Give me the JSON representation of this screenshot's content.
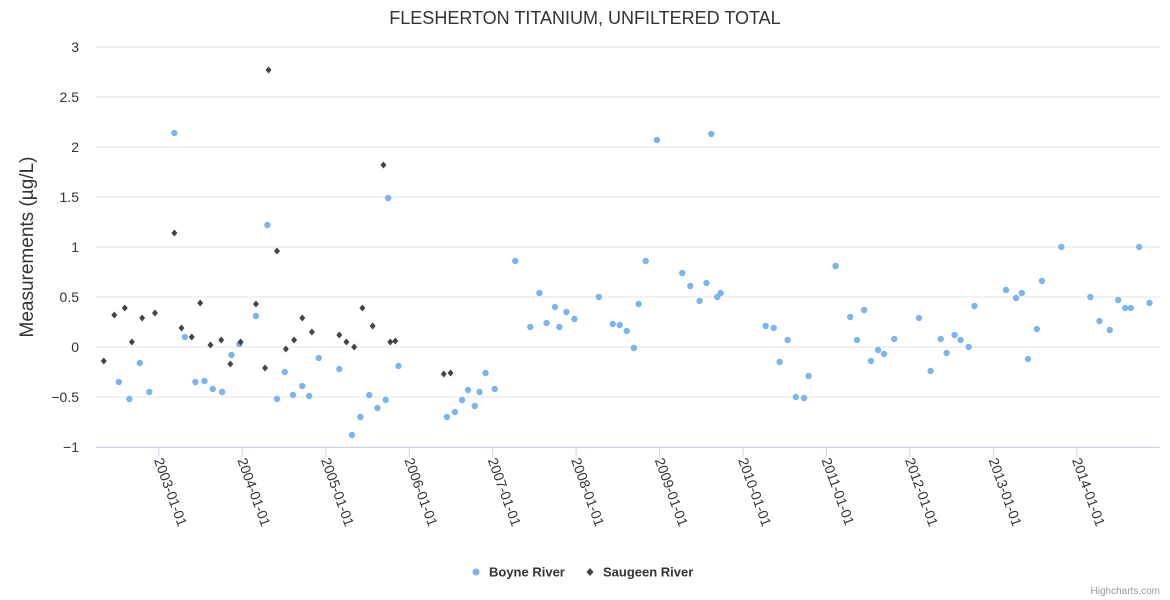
{
  "chart_data": {
    "type": "scatter",
    "title": "FLESHERTON TITANIUM, UNFILTERED TOTAL",
    "xlabel": "",
    "ylabel": "Measurements (µg/L)",
    "ylim": [
      -1,
      3
    ],
    "y_ticks": [
      "−1",
      "−0.5",
      "0",
      "0.5",
      "1",
      "1.5",
      "2",
      "2.5",
      "3"
    ],
    "x_ticks": [
      "2003-01-01",
      "2004-01-01",
      "2005-01-01",
      "2006-01-01",
      "2007-01-01",
      "2008-01-01",
      "2009-01-01",
      "2010-01-01",
      "2011-01-01",
      "2012-01-01",
      "2013-01-01",
      "2014-01-01"
    ],
    "x_domain": [
      "2002-04-01",
      "2014-12-31"
    ],
    "grid": true,
    "legend_placement": "bottom-center",
    "credits": "Highcharts.com",
    "series": [
      {
        "name": "Boyne River",
        "color": "#7cb5ec",
        "marker": "circle",
        "points": [
          [
            "2002-07-10",
            -0.35
          ],
          [
            "2002-08-25",
            -0.52
          ],
          [
            "2002-10-10",
            -0.16
          ],
          [
            "2002-11-20",
            -0.45
          ],
          [
            "2003-03-10",
            2.14
          ],
          [
            "2003-04-25",
            0.1
          ],
          [
            "2003-06-10",
            -0.35
          ],
          [
            "2003-07-20",
            -0.34
          ],
          [
            "2003-08-25",
            -0.42
          ],
          [
            "2003-10-05",
            -0.45
          ],
          [
            "2003-11-15",
            -0.08
          ],
          [
            "2003-12-20",
            0.03
          ],
          [
            "2004-03-01",
            0.31
          ],
          [
            "2004-04-20",
            1.22
          ],
          [
            "2004-06-01",
            -0.52
          ],
          [
            "2004-07-05",
            -0.25
          ],
          [
            "2004-08-10",
            -0.48
          ],
          [
            "2004-09-20",
            -0.39
          ],
          [
            "2004-10-20",
            -0.49
          ],
          [
            "2004-12-01",
            -0.11
          ],
          [
            "2005-03-01",
            -0.22
          ],
          [
            "2005-04-25",
            -0.88
          ],
          [
            "2005-06-01",
            -0.7
          ],
          [
            "2005-07-10",
            -0.48
          ],
          [
            "2005-08-15",
            -0.61
          ],
          [
            "2005-09-20",
            -0.53
          ],
          [
            "2005-10-01",
            1.49
          ],
          [
            "2005-11-15",
            -0.19
          ],
          [
            "2006-06-15",
            -0.7
          ],
          [
            "2006-07-20",
            -0.65
          ],
          [
            "2006-08-20",
            -0.53
          ],
          [
            "2006-09-15",
            -0.43
          ],
          [
            "2006-10-15",
            -0.59
          ],
          [
            "2006-11-05",
            -0.45
          ],
          [
            "2006-12-01",
            -0.26
          ],
          [
            "2007-01-10",
            -0.42
          ],
          [
            "2007-04-10",
            0.86
          ],
          [
            "2007-06-15",
            0.2
          ],
          [
            "2007-07-25",
            0.54
          ],
          [
            "2007-08-25",
            0.24
          ],
          [
            "2007-10-01",
            0.4
          ],
          [
            "2007-10-20",
            0.2
          ],
          [
            "2007-11-20",
            0.35
          ],
          [
            "2007-12-25",
            0.28
          ],
          [
            "2008-04-10",
            0.5
          ],
          [
            "2008-06-10",
            0.23
          ],
          [
            "2008-07-10",
            0.22
          ],
          [
            "2008-08-10",
            0.16
          ],
          [
            "2008-09-10",
            -0.01
          ],
          [
            "2008-10-01",
            0.43
          ],
          [
            "2008-11-01",
            0.86
          ],
          [
            "2008-12-20",
            2.07
          ],
          [
            "2009-04-10",
            0.74
          ],
          [
            "2009-05-15",
            0.61
          ],
          [
            "2009-06-25",
            0.46
          ],
          [
            "2009-07-25",
            0.64
          ],
          [
            "2009-08-15",
            2.13
          ],
          [
            "2009-09-10",
            0.5
          ],
          [
            "2009-09-25",
            0.54
          ],
          [
            "2010-04-10",
            0.21
          ],
          [
            "2010-05-15",
            0.19
          ],
          [
            "2010-06-10",
            -0.15
          ],
          [
            "2010-07-15",
            0.07
          ],
          [
            "2010-08-20",
            -0.5
          ],
          [
            "2010-09-25",
            -0.51
          ],
          [
            "2010-10-15",
            -0.29
          ],
          [
            "2011-02-10",
            0.81
          ],
          [
            "2011-04-15",
            0.3
          ],
          [
            "2011-05-15",
            0.07
          ],
          [
            "2011-06-15",
            0.37
          ],
          [
            "2011-07-15",
            -0.14
          ],
          [
            "2011-08-15",
            -0.03
          ],
          [
            "2011-09-10",
            -0.07
          ],
          [
            "2011-10-25",
            0.08
          ],
          [
            "2012-02-10",
            0.29
          ],
          [
            "2012-04-01",
            -0.24
          ],
          [
            "2012-05-15",
            0.08
          ],
          [
            "2012-06-10",
            -0.06
          ],
          [
            "2012-07-15",
            0.12
          ],
          [
            "2012-08-10",
            0.07
          ],
          [
            "2012-09-15",
            0.0
          ],
          [
            "2012-10-10",
            0.41
          ],
          [
            "2013-02-25",
            0.57
          ],
          [
            "2013-04-10",
            0.49
          ],
          [
            "2013-05-05",
            0.54
          ],
          [
            "2013-06-01",
            -0.12
          ],
          [
            "2013-07-10",
            0.18
          ],
          [
            "2013-08-01",
            0.66
          ],
          [
            "2013-10-25",
            1.0
          ],
          [
            "2014-03-01",
            0.5
          ],
          [
            "2014-04-10",
            0.26
          ],
          [
            "2014-05-25",
            0.17
          ],
          [
            "2014-07-01",
            0.47
          ],
          [
            "2014-08-01",
            0.39
          ],
          [
            "2014-08-25",
            0.39
          ],
          [
            "2014-10-01",
            1.0
          ],
          [
            "2014-11-15",
            0.44
          ]
        ]
      },
      {
        "name": "Saugeen River",
        "color": "#434348",
        "marker": "diamond",
        "points": [
          [
            "2002-05-05",
            -0.14
          ],
          [
            "2002-06-20",
            0.32
          ],
          [
            "2002-08-05",
            0.39
          ],
          [
            "2002-09-05",
            0.05
          ],
          [
            "2002-10-20",
            0.29
          ],
          [
            "2002-12-15",
            0.34
          ],
          [
            "2003-03-10",
            1.14
          ],
          [
            "2003-04-10",
            0.19
          ],
          [
            "2003-05-25",
            0.1
          ],
          [
            "2003-07-01",
            0.44
          ],
          [
            "2003-08-15",
            0.02
          ],
          [
            "2003-10-01",
            0.07
          ],
          [
            "2003-11-10",
            -0.17
          ],
          [
            "2003-12-25",
            0.05
          ],
          [
            "2004-03-01",
            0.43
          ],
          [
            "2004-04-10",
            -0.21
          ],
          [
            "2004-04-25",
            2.77
          ],
          [
            "2004-06-01",
            0.96
          ],
          [
            "2004-07-10",
            -0.02
          ],
          [
            "2004-08-15",
            0.07
          ],
          [
            "2004-09-20",
            0.29
          ],
          [
            "2004-11-01",
            0.15
          ],
          [
            "2005-03-01",
            0.12
          ],
          [
            "2005-04-01",
            0.05
          ],
          [
            "2005-05-05",
            0.0
          ],
          [
            "2005-06-10",
            0.39
          ],
          [
            "2005-07-25",
            0.21
          ],
          [
            "2005-09-10",
            1.82
          ],
          [
            "2005-10-10",
            0.05
          ],
          [
            "2005-11-01",
            0.06
          ],
          [
            "2006-06-01",
            -0.27
          ],
          [
            "2006-07-01",
            -0.26
          ]
        ]
      }
    ]
  }
}
